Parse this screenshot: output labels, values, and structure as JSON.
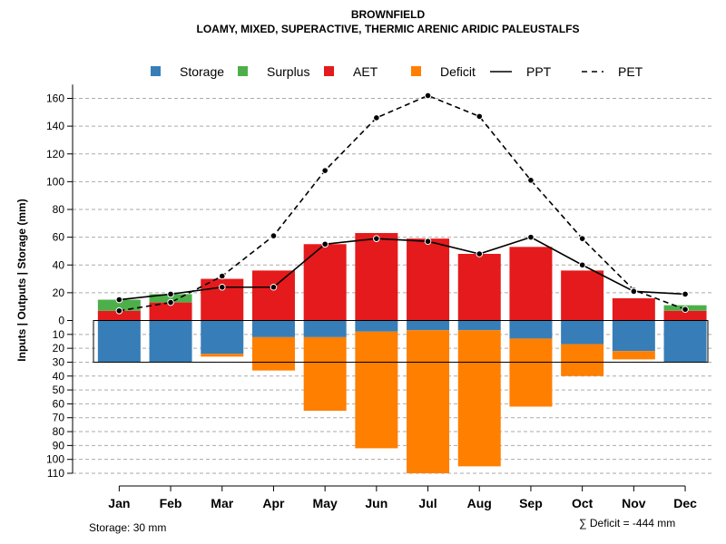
{
  "chart_data": {
    "type": "bar",
    "title": "BROWNFIELD",
    "subtitle": "LOAMY, MIXED, SUPERACTIVE, THERMIC ARENIC ARIDIC PALEUSTALFS",
    "ylabel": "Inputs | Outputs | Storage    (mm)",
    "categories": [
      "Jan",
      "Feb",
      "Mar",
      "Apr",
      "May",
      "Jun",
      "Jul",
      "Aug",
      "Sep",
      "Oct",
      "Nov",
      "Dec"
    ],
    "upper_axis": {
      "range": [
        0,
        170
      ],
      "ticks": [
        0,
        20,
        40,
        60,
        80,
        100,
        120,
        140,
        160
      ]
    },
    "lower_axis": {
      "range": [
        0,
        110
      ],
      "ticks": [
        0,
        10,
        20,
        30,
        40,
        50,
        60,
        70,
        80,
        90,
        100,
        110
      ]
    },
    "legend": [
      {
        "label": "Storage",
        "kind": "box",
        "color": "#377EB8"
      },
      {
        "label": "Surplus",
        "kind": "box",
        "color": "#4DAF4A"
      },
      {
        "label": "AET",
        "kind": "box",
        "color": "#E41A1C"
      },
      {
        "label": "Deficit",
        "kind": "box",
        "color": "#FF7F00"
      },
      {
        "label": "PPT",
        "kind": "solid",
        "color": "#000000"
      },
      {
        "label": "PET",
        "kind": "dashed",
        "color": "#000000"
      }
    ],
    "series": [
      {
        "name": "AET",
        "values": [
          7,
          13,
          30,
          36,
          55,
          63,
          59,
          48,
          53,
          36,
          16,
          7
        ]
      },
      {
        "name": "Surplus",
        "values": [
          8,
          6,
          0,
          0,
          0,
          0,
          0,
          0,
          0,
          0,
          0,
          4
        ]
      },
      {
        "name": "Storage",
        "values": [
          30,
          30,
          24,
          12,
          12,
          8,
          7,
          7,
          13,
          17,
          22,
          30
        ]
      },
      {
        "name": "Deficit",
        "values": [
          0,
          0,
          2,
          24,
          53,
          84,
          103,
          98,
          49,
          23,
          6,
          0
        ]
      },
      {
        "name": "PPT",
        "values": [
          15,
          19,
          24,
          24,
          55,
          59,
          57,
          48,
          60,
          40,
          21,
          19
        ]
      },
      {
        "name": "PET",
        "values": [
          7,
          13,
          32,
          61,
          108,
          146,
          162,
          147,
          101,
          59,
          22,
          8
        ]
      }
    ],
    "storage_capacity": 30
  },
  "footer": {
    "storage": "Storage: 30 mm",
    "deficit": "∑ Deficit = -444 mm"
  }
}
